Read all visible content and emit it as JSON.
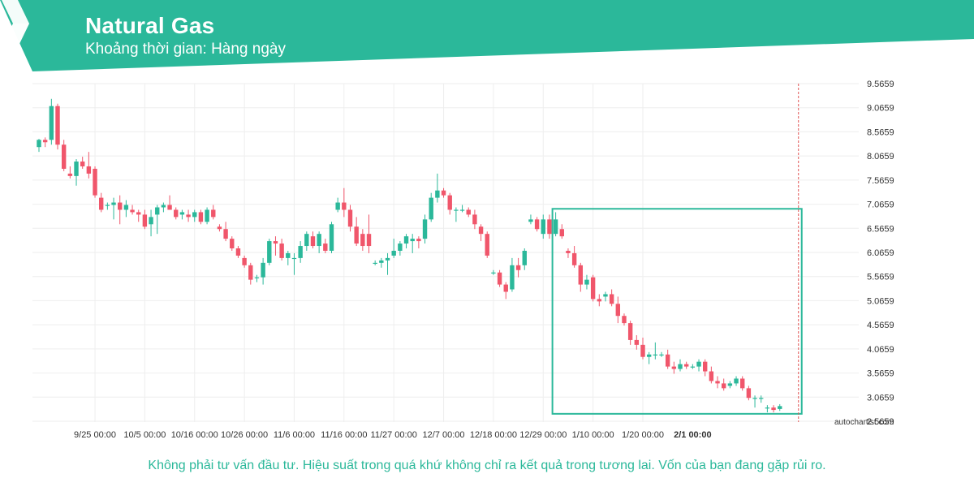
{
  "header": {
    "title": "Natural Gas",
    "subtitle": "Khoảng thời gian: Hàng ngày",
    "brand_color": "#2bb89a",
    "logo_icon": "autochartist-logo-icon"
  },
  "footer": {
    "disclaimer": "Không phải tư vấn đầu tư. Hiệu suất trong quá khứ không chỉ ra kết quả trong tương lai. Vốn của bạn đang gặp rủi ro."
  },
  "watermark": "autochartist.com",
  "chart_data": {
    "type": "candlestick",
    "title": "Natural Gas",
    "colors": {
      "up": "#2bb89a",
      "down": "#f0566b",
      "grid": "#eeeeee",
      "pattern_box": "#2bb89a",
      "forecast_line": "#e05555"
    },
    "ylim": [
      2.5659,
      9.8
    ],
    "y_ticks": [
      "9.5659",
      "9.0659",
      "8.5659",
      "8.0659",
      "7.5659",
      "7.0659",
      "6.5659",
      "6.0659",
      "5.5659",
      "5.0659",
      "4.5659",
      "4.0659",
      "3.5659",
      "3.0659",
      "2.5659"
    ],
    "x_ticks": [
      {
        "i": 9,
        "label": "9/25 00:00"
      },
      {
        "i": 17,
        "label": "10/5 00:00"
      },
      {
        "i": 25,
        "label": "10/16 00:00"
      },
      {
        "i": 33,
        "label": "10/26 00:00"
      },
      {
        "i": 41,
        "label": "11/6 00:00"
      },
      {
        "i": 49,
        "label": "11/16 00:00"
      },
      {
        "i": 57,
        "label": "11/27 00:00"
      },
      {
        "i": 65,
        "label": "12/7 00:00"
      },
      {
        "i": 73,
        "label": "12/18 00:00"
      },
      {
        "i": 81,
        "label": "12/29 00:00"
      },
      {
        "i": 89,
        "label": "1/10 00:00"
      },
      {
        "i": 97,
        "label": "1/20 00:00"
      },
      {
        "i": 105,
        "label": "2/1 00:00",
        "bold": true
      }
    ],
    "candles": [
      [
        8.25,
        8.42,
        8.15,
        8.4
      ],
      [
        8.4,
        8.45,
        8.25,
        8.35
      ],
      [
        8.4,
        9.25,
        8.3,
        9.1
      ],
      [
        9.1,
        9.15,
        8.2,
        8.3
      ],
      [
        8.3,
        8.4,
        7.75,
        7.8
      ],
      [
        7.7,
        7.85,
        7.6,
        7.65
      ],
      [
        7.65,
        8.0,
        7.45,
        7.95
      ],
      [
        7.95,
        8.05,
        7.8,
        7.85
      ],
      [
        7.85,
        8.15,
        7.6,
        7.7
      ],
      [
        7.8,
        7.85,
        7.2,
        7.25
      ],
      [
        7.2,
        7.3,
        6.9,
        6.95
      ],
      [
        7.05,
        7.1,
        6.95,
        7.05
      ],
      [
        7.05,
        7.2,
        6.75,
        7.1
      ],
      [
        7.1,
        7.25,
        6.65,
        6.95
      ],
      [
        6.95,
        7.15,
        6.8,
        7.05
      ],
      [
        6.95,
        7.05,
        6.85,
        6.9
      ],
      [
        6.9,
        6.95,
        6.7,
        6.85
      ],
      [
        6.85,
        6.95,
        6.55,
        6.6
      ],
      [
        6.65,
        6.95,
        6.4,
        6.8
      ],
      [
        6.85,
        7.05,
        6.45,
        7.0
      ],
      [
        7.0,
        7.1,
        6.9,
        7.05
      ],
      [
        7.05,
        7.25,
        6.95,
        6.95
      ],
      [
        6.95,
        7.0,
        6.75,
        6.8
      ],
      [
        6.85,
        6.95,
        6.75,
        6.9
      ],
      [
        6.85,
        6.95,
        6.7,
        6.8
      ],
      [
        6.8,
        6.95,
        6.7,
        6.9
      ],
      [
        6.9,
        6.95,
        6.65,
        6.7
      ],
      [
        6.7,
        7.0,
        6.65,
        6.95
      ],
      [
        6.95,
        7.05,
        6.75,
        6.8
      ],
      [
        6.6,
        6.65,
        6.5,
        6.55
      ],
      [
        6.55,
        6.7,
        6.3,
        6.35
      ],
      [
        6.35,
        6.4,
        6.1,
        6.15
      ],
      [
        6.15,
        6.2,
        5.95,
        6.0
      ],
      [
        5.95,
        6.0,
        5.75,
        5.8
      ],
      [
        5.8,
        5.85,
        5.4,
        5.5
      ],
      [
        5.55,
        5.6,
        5.45,
        5.55
      ],
      [
        5.55,
        5.95,
        5.4,
        5.85
      ],
      [
        5.85,
        6.35,
        5.8,
        6.3
      ],
      [
        6.3,
        6.4,
        6.0,
        6.25
      ],
      [
        6.25,
        6.35,
        5.9,
        5.95
      ],
      [
        5.95,
        6.1,
        5.8,
        6.05
      ],
      [
        5.95,
        6.05,
        5.6,
        5.95
      ],
      [
        5.95,
        6.3,
        5.85,
        6.2
      ],
      [
        6.2,
        6.5,
        6.1,
        6.45
      ],
      [
        6.4,
        6.5,
        6.15,
        6.2
      ],
      [
        6.2,
        6.5,
        6.05,
        6.45
      ],
      [
        6.25,
        6.35,
        6.05,
        6.1
      ],
      [
        6.1,
        6.7,
        6.05,
        6.65
      ],
      [
        6.95,
        7.2,
        6.9,
        7.1
      ],
      [
        7.1,
        7.4,
        6.8,
        6.95
      ],
      [
        6.95,
        7.05,
        6.5,
        6.6
      ],
      [
        6.6,
        6.8,
        6.2,
        6.25
      ],
      [
        6.45,
        6.55,
        6.1,
        6.2
      ],
      [
        6.45,
        6.85,
        6.05,
        6.2
      ],
      [
        5.85,
        5.9,
        5.8,
        5.85
      ],
      [
        5.85,
        5.95,
        5.75,
        5.9
      ],
      [
        5.9,
        6.05,
        5.6,
        5.95
      ],
      [
        6.0,
        6.35,
        5.95,
        6.1
      ],
      [
        6.1,
        6.3,
        6.0,
        6.25
      ],
      [
        6.25,
        6.45,
        6.15,
        6.4
      ],
      [
        6.3,
        6.45,
        6.05,
        6.35
      ],
      [
        6.35,
        6.4,
        6.15,
        6.3
      ],
      [
        6.35,
        6.85,
        6.25,
        6.75
      ],
      [
        6.75,
        7.3,
        6.7,
        7.2
      ],
      [
        7.2,
        7.7,
        7.1,
        7.35
      ],
      [
        7.35,
        7.4,
        7.2,
        7.25
      ],
      [
        7.25,
        7.3,
        6.85,
        6.95
      ],
      [
        6.95,
        7.0,
        6.7,
        6.95
      ],
      [
        6.95,
        7.05,
        6.9,
        6.95
      ],
      [
        6.95,
        7.0,
        6.8,
        6.85
      ],
      [
        6.85,
        6.95,
        6.55,
        6.65
      ],
      [
        6.6,
        6.65,
        6.3,
        6.45
      ],
      [
        6.45,
        6.5,
        5.95,
        6.0
      ],
      [
        5.65,
        5.7,
        5.6,
        5.65
      ],
      [
        5.65,
        5.7,
        5.35,
        5.4
      ],
      [
        5.4,
        5.45,
        5.1,
        5.25
      ],
      [
        5.3,
        5.95,
        5.25,
        5.8
      ],
      [
        5.8,
        5.95,
        5.55,
        5.7
      ],
      [
        5.8,
        6.15,
        5.7,
        6.1
      ],
      [
        6.7,
        6.85,
        6.65,
        6.75
      ],
      [
        6.75,
        6.8,
        6.5,
        6.55
      ],
      [
        6.45,
        6.85,
        6.35,
        6.75
      ],
      [
        6.75,
        6.85,
        6.35,
        6.45
      ],
      [
        6.45,
        6.9,
        6.4,
        6.75
      ],
      [
        6.55,
        6.65,
        6.35,
        6.4
      ],
      [
        6.1,
        6.15,
        5.95,
        6.05
      ],
      [
        6.05,
        6.2,
        5.75,
        5.8
      ],
      [
        5.8,
        5.85,
        5.25,
        5.4
      ],
      [
        5.4,
        5.6,
        5.3,
        5.5
      ],
      [
        5.55,
        5.6,
        5.05,
        5.1
      ],
      [
        5.1,
        5.2,
        4.95,
        5.05
      ],
      [
        5.15,
        5.25,
        5.05,
        5.2
      ],
      [
        5.2,
        5.3,
        4.95,
        5.0
      ],
      [
        5.0,
        5.15,
        4.6,
        4.75
      ],
      [
        4.75,
        4.8,
        4.55,
        4.6
      ],
      [
        4.6,
        4.65,
        4.15,
        4.25
      ],
      [
        4.25,
        4.35,
        4.05,
        4.15
      ],
      [
        4.15,
        4.3,
        3.85,
        3.9
      ],
      [
        3.9,
        4.0,
        3.75,
        3.95
      ],
      [
        3.95,
        4.2,
        3.85,
        3.95
      ],
      [
        3.95,
        4.0,
        3.9,
        3.95
      ],
      [
        3.95,
        4.05,
        3.65,
        3.7
      ],
      [
        3.7,
        3.8,
        3.55,
        3.65
      ],
      [
        3.65,
        3.85,
        3.6,
        3.75
      ],
      [
        3.75,
        3.8,
        3.65,
        3.7
      ],
      [
        3.7,
        3.75,
        3.65,
        3.7
      ],
      [
        3.7,
        3.85,
        3.6,
        3.8
      ],
      [
        3.8,
        3.85,
        3.5,
        3.6
      ],
      [
        3.6,
        3.7,
        3.35,
        3.4
      ],
      [
        3.4,
        3.5,
        3.25,
        3.35
      ],
      [
        3.35,
        3.45,
        3.2,
        3.25
      ],
      [
        3.3,
        3.4,
        3.25,
        3.35
      ],
      [
        3.35,
        3.5,
        3.3,
        3.45
      ],
      [
        3.45,
        3.5,
        3.2,
        3.25
      ],
      [
        3.25,
        3.3,
        3.0,
        3.05
      ],
      [
        3.05,
        3.1,
        2.85,
        3.05
      ],
      [
        3.05,
        3.1,
        2.95,
        3.05
      ],
      [
        2.85,
        2.9,
        2.75,
        2.85
      ],
      [
        2.85,
        2.9,
        2.75,
        2.8
      ],
      [
        2.82,
        2.92,
        2.78,
        2.88
      ]
    ],
    "pattern_box": {
      "i_start": 83,
      "i_end": 122,
      "y_top": 6.97,
      "y_bottom": 2.72
    },
    "forecast_line": {
      "i": 122
    }
  }
}
